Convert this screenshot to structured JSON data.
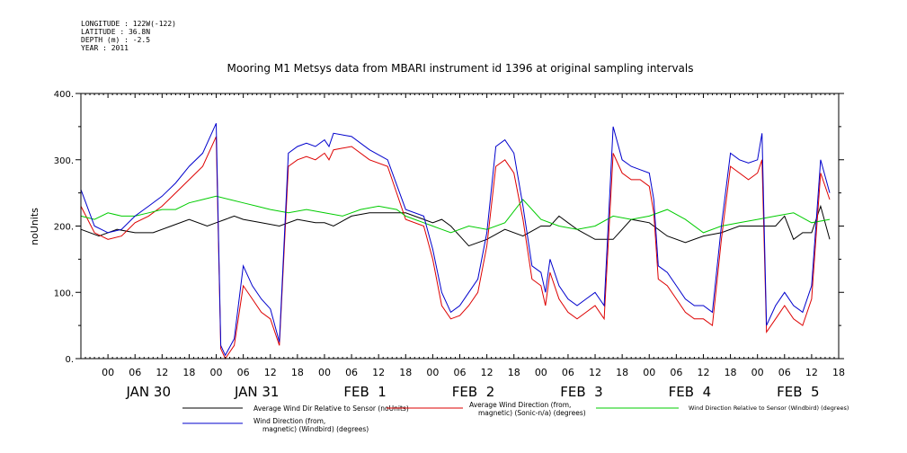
{
  "header": {
    "meta": [
      "LONGITUDE : 122W(-122)",
      "LATITUDE : 36.8N",
      "DEPTH (m) : -2.5",
      "YEAR : 2011"
    ]
  },
  "chart_data": {
    "type": "line",
    "title": "Mooring M1 Metsys data from MBARI instrument id 1396 at original sampling intervals",
    "ylabel": "noUnits",
    "xlabel": "",
    "ylim": [
      0,
      400
    ],
    "yticks": [
      "0.",
      "100.",
      "200.",
      "300.",
      "400."
    ],
    "xlim_hours": [
      -6,
      162
    ],
    "hour_ticks": [
      "00",
      "06",
      "12",
      "18",
      "00",
      "06",
      "12",
      "18",
      "00",
      "06",
      "12",
      "18",
      "00",
      "06",
      "12",
      "18",
      "00",
      "06",
      "12",
      "18",
      "00",
      "06",
      "12",
      "18",
      "00",
      "06",
      "12",
      "18"
    ],
    "day_labels": [
      "JAN 30",
      "JAN 31",
      "FEB  1",
      "FEB  2",
      "FEB  3",
      "FEB  4",
      "FEB  5"
    ],
    "grid": false,
    "legend_position": "bottom",
    "colors": {
      "black": "#000000",
      "red": "#dd0000",
      "green": "#00cc00",
      "blue": "#0000cc"
    },
    "series": [
      {
        "name": "Average Wind Dir Relative to Sensor (noUnits)",
        "color": "#000000",
        "x": [
          -6,
          -2,
          2,
          6,
          10,
          14,
          18,
          22,
          24,
          26,
          28,
          30,
          34,
          38,
          42,
          46,
          48,
          50,
          54,
          58,
          62,
          66,
          70,
          72,
          74,
          76,
          78,
          80,
          84,
          88,
          92,
          96,
          98,
          100,
          102,
          104,
          108,
          112,
          116,
          120,
          124,
          128,
          132,
          136,
          140,
          144,
          148,
          150,
          152,
          154,
          156,
          158,
          160
        ],
        "y": [
          195,
          185,
          195,
          190,
          190,
          200,
          210,
          200,
          205,
          210,
          215,
          210,
          205,
          200,
          210,
          205,
          205,
          200,
          215,
          220,
          220,
          220,
          210,
          205,
          210,
          200,
          185,
          170,
          180,
          195,
          185,
          200,
          200,
          215,
          205,
          195,
          180,
          180,
          210,
          205,
          185,
          175,
          185,
          190,
          200,
          200,
          200,
          215,
          180,
          190,
          190,
          230,
          180
        ]
      },
      {
        "name": "Average Wind Direction (from, magnetic) (Sonic-n/a) (degrees)",
        "color": "#dd0000",
        "x": [
          -6,
          -3,
          0,
          3,
          6,
          9,
          12,
          15,
          18,
          21,
          24,
          25,
          26,
          28,
          30,
          32,
          34,
          36,
          38,
          40,
          42,
          44,
          46,
          48,
          49,
          50,
          54,
          58,
          62,
          66,
          70,
          72,
          74,
          76,
          78,
          80,
          82,
          84,
          86,
          88,
          90,
          92,
          94,
          96,
          97,
          98,
          100,
          102,
          104,
          106,
          108,
          110,
          112,
          114,
          116,
          118,
          120,
          121,
          122,
          124,
          126,
          128,
          130,
          132,
          134,
          136,
          138,
          140,
          142,
          144,
          145,
          146,
          148,
          150,
          152,
          154,
          156,
          158,
          160
        ],
        "y": [
          230,
          190,
          180,
          185,
          205,
          215,
          230,
          250,
          270,
          290,
          335,
          15,
          0,
          20,
          110,
          90,
          70,
          60,
          20,
          290,
          300,
          305,
          300,
          310,
          300,
          315,
          320,
          300,
          290,
          210,
          200,
          150,
          80,
          60,
          65,
          80,
          100,
          170,
          290,
          300,
          280,
          210,
          120,
          110,
          80,
          130,
          90,
          70,
          60,
          70,
          80,
          60,
          310,
          280,
          270,
          270,
          260,
          220,
          120,
          110,
          90,
          70,
          60,
          60,
          50,
          180,
          290,
          280,
          270,
          280,
          300,
          40,
          60,
          80,
          60,
          50,
          90,
          280,
          240
        ]
      },
      {
        "name": "Wind Direction Relative to Sensor (Windbird) (degrees)",
        "color": "#00cc00",
        "x": [
          -6,
          -3,
          0,
          3,
          6,
          9,
          12,
          15,
          18,
          21,
          24,
          27,
          30,
          33,
          36,
          40,
          44,
          48,
          52,
          56,
          60,
          64,
          66,
          68,
          70,
          72,
          74,
          76,
          80,
          84,
          88,
          92,
          96,
          100,
          104,
          108,
          112,
          116,
          120,
          124,
          128,
          132,
          136,
          140,
          144,
          148,
          152,
          156,
          160
        ],
        "y": [
          215,
          210,
          220,
          215,
          215,
          220,
          225,
          225,
          235,
          240,
          245,
          240,
          235,
          230,
          225,
          220,
          225,
          220,
          215,
          225,
          230,
          225,
          215,
          210,
          205,
          200,
          195,
          190,
          200,
          195,
          205,
          240,
          210,
          200,
          195,
          200,
          215,
          210,
          215,
          225,
          210,
          190,
          200,
          205,
          210,
          215,
          220,
          205,
          210
        ]
      },
      {
        "name": "Wind Direction (from, magnetic) (Windbird) (degrees)",
        "color": "#0000cc",
        "x": [
          -6,
          -3,
          0,
          3,
          6,
          9,
          12,
          15,
          18,
          21,
          24,
          25,
          26,
          28,
          30,
          32,
          34,
          36,
          38,
          40,
          42,
          44,
          46,
          48,
          49,
          50,
          54,
          58,
          62,
          66,
          70,
          72,
          74,
          76,
          78,
          80,
          82,
          84,
          86,
          88,
          90,
          92,
          94,
          96,
          97,
          98,
          100,
          102,
          104,
          106,
          108,
          110,
          112,
          114,
          116,
          118,
          120,
          121,
          122,
          124,
          126,
          128,
          130,
          132,
          134,
          136,
          138,
          140,
          142,
          144,
          145,
          146,
          148,
          150,
          152,
          154,
          156,
          158,
          160
        ],
        "y": [
          255,
          200,
          190,
          195,
          215,
          230,
          245,
          265,
          290,
          310,
          355,
          20,
          5,
          30,
          140,
          110,
          90,
          75,
          25,
          310,
          320,
          325,
          320,
          330,
          320,
          340,
          335,
          315,
          300,
          225,
          215,
          165,
          100,
          70,
          80,
          100,
          120,
          190,
          320,
          330,
          310,
          230,
          140,
          130,
          100,
          150,
          110,
          90,
          80,
          90,
          100,
          80,
          350,
          300,
          290,
          285,
          280,
          240,
          140,
          130,
          110,
          90,
          80,
          80,
          70,
          200,
          310,
          300,
          295,
          300,
          340,
          50,
          80,
          100,
          80,
          70,
          110,
          300,
          250
        ]
      }
    ]
  }
}
